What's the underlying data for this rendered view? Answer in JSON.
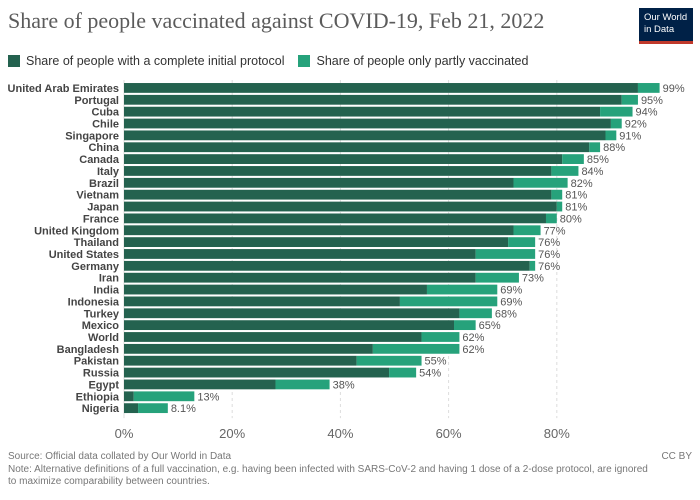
{
  "header": {
    "title": "Share of people vaccinated against COVID-19, Feb 21, 2022",
    "logo_line1": "Our World",
    "logo_line2": "in Data"
  },
  "footer": {
    "source": "Source: Official data collated by Our World in Data",
    "note": "Note: Alternative definitions of a full vaccination, e.g. having been infected with SARS-CoV-2 and having 1 dose of a 2-dose protocol, are ignored to maximize comparability between countries.",
    "license": "CC BY"
  },
  "colors": {
    "complete": "#24624f",
    "partial": "#26a27b"
  },
  "chart_data": {
    "type": "bar",
    "orientation": "horizontal",
    "stacked": true,
    "title": "Share of people vaccinated against COVID-19, Feb 21, 2022",
    "categories": [
      "United Arab Emirates",
      "Portugal",
      "Cuba",
      "Chile",
      "Singapore",
      "China",
      "Canada",
      "Italy",
      "Brazil",
      "Vietnam",
      "Japan",
      "France",
      "United Kingdom",
      "Thailand",
      "United States",
      "Germany",
      "Iran",
      "India",
      "Indonesia",
      "Turkey",
      "Mexico",
      "World",
      "Bangladesh",
      "Pakistan",
      "Russia",
      "Egypt",
      "Ethiopia",
      "Nigeria"
    ],
    "series": [
      {
        "name": "Share of people with a complete initial protocol",
        "values": [
          95,
          92,
          88,
          90,
          89,
          86,
          81,
          79,
          72,
          79,
          80,
          78,
          72,
          71,
          65,
          75,
          65,
          56,
          51,
          62,
          61,
          55,
          46,
          43,
          49,
          28,
          1.8,
          2.6
        ]
      },
      {
        "name": "Share of people only partly vaccinated",
        "values": [
          4,
          3,
          6,
          2,
          2,
          2,
          4,
          5,
          10,
          2,
          1,
          2,
          5,
          5,
          11,
          1,
          8,
          13,
          18,
          6,
          4,
          7,
          16,
          12,
          5,
          10,
          11.2,
          5.5
        ]
      }
    ],
    "totals_labels": [
      "99%",
      "95%",
      "94%",
      "92%",
      "91%",
      "88%",
      "85%",
      "84%",
      "82%",
      "81%",
      "81%",
      "80%",
      "77%",
      "76%",
      "76%",
      "76%",
      "73%",
      "69%",
      "69%",
      "68%",
      "65%",
      "62%",
      "62%",
      "55%",
      "54%",
      "38%",
      "13%",
      "8.1%"
    ],
    "xlim": [
      0,
      100
    ],
    "xticks": [
      0,
      20,
      40,
      60,
      80
    ],
    "xtick_labels": [
      "0%",
      "20%",
      "40%",
      "60%",
      "80%"
    ],
    "grid": true,
    "legend": "top-left"
  }
}
